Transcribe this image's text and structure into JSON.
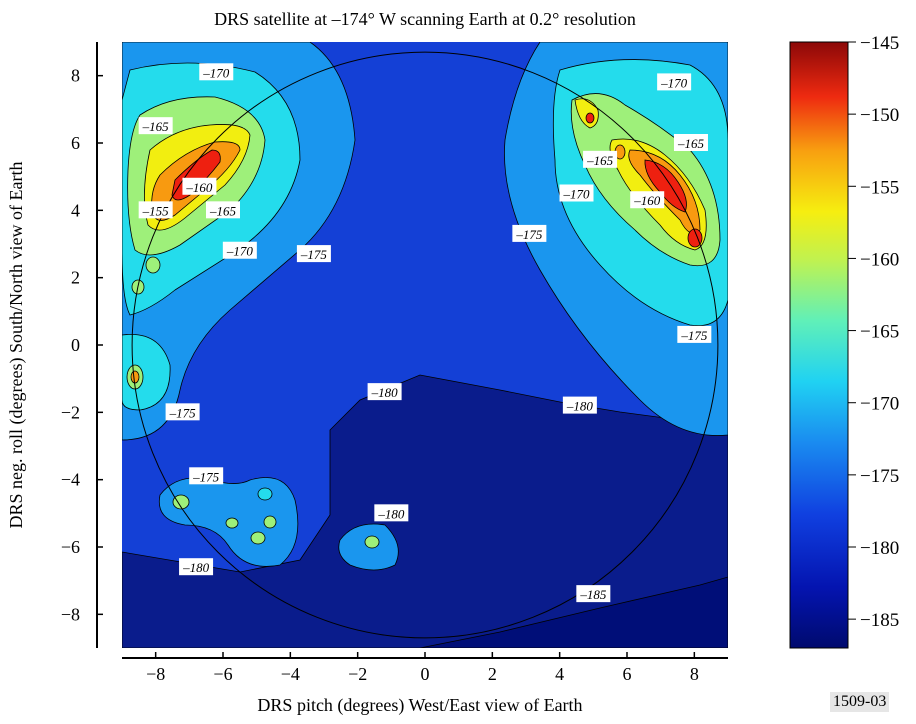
{
  "chart_data": {
    "type": "heatmap",
    "title": "DRS satellite at –174° W scanning Earth at 0.2° resolution",
    "xlabel": "DRS pitch (degrees) West/East view of Earth",
    "ylabel": "DRS neg. roll (degrees) South/North view of Earth",
    "xlim": [
      -9,
      9
    ],
    "ylim": [
      -9,
      9
    ],
    "x_ticks": [
      -8,
      -6,
      -4,
      -2,
      0,
      2,
      4,
      6,
      8
    ],
    "x_tick_labels": [
      "−8",
      "−6",
      "−4",
      "−2",
      "0",
      "2",
      "4",
      "6",
      "8"
    ],
    "y_ticks": [
      -8,
      -6,
      -4,
      -2,
      0,
      2,
      4,
      6,
      8
    ],
    "y_tick_labels": [
      "−8",
      "−6",
      "−4",
      "−2",
      "0",
      "2",
      "4",
      "6",
      "8"
    ],
    "colorbar": {
      "range": [
        -187,
        -145
      ],
      "ticks": [
        -145,
        -150,
        -155,
        -160,
        -165,
        -170,
        -175,
        -180,
        -185
      ],
      "tick_labels": [
        "−145",
        "−150",
        "−155",
        "−160",
        "−165",
        "−170",
        "−175",
        "−180",
        "−185"
      ]
    },
    "earth_disc": {
      "center": [
        0,
        0
      ],
      "radius": 8.7
    },
    "contour_levels": [
      -185,
      -180,
      -175,
      -170,
      -165,
      -160,
      -155,
      -150
    ],
    "contour_labels": [
      {
        "text": "–170",
        "x": -6.2,
        "y": 8.1
      },
      {
        "text": "–165",
        "x": -8.0,
        "y": 6.5
      },
      {
        "text": "–160",
        "x": -6.7,
        "y": 4.7
      },
      {
        "text": "–155",
        "x": -8.0,
        "y": 4.0
      },
      {
        "text": "–165",
        "x": -6.0,
        "y": 4.0
      },
      {
        "text": "–170",
        "x": -5.5,
        "y": 2.8
      },
      {
        "text": "–175",
        "x": -3.3,
        "y": 2.7
      },
      {
        "text": "–170",
        "x": 7.4,
        "y": 7.8
      },
      {
        "text": "–165",
        "x": 7.9,
        "y": 6.0
      },
      {
        "text": "–165",
        "x": 5.2,
        "y": 5.5
      },
      {
        "text": "–160",
        "x": 6.6,
        "y": 4.3
      },
      {
        "text": "–170",
        "x": 4.5,
        "y": 4.5
      },
      {
        "text": "–175",
        "x": 3.1,
        "y": 3.3
      },
      {
        "text": "–175",
        "x": 8.0,
        "y": 0.3
      },
      {
        "text": "–180",
        "x": -1.2,
        "y": -1.4
      },
      {
        "text": "–180",
        "x": 4.6,
        "y": -1.8
      },
      {
        "text": "–175",
        "x": -7.2,
        "y": -2.0
      },
      {
        "text": "–175",
        "x": -6.5,
        "y": -3.9
      },
      {
        "text": "–180",
        "x": -1.0,
        "y": -5.0
      },
      {
        "text": "–180",
        "x": -6.8,
        "y": -6.6
      },
      {
        "text": "–185",
        "x": 5.0,
        "y": -7.4
      }
    ],
    "colors": {
      "-185": "#0a1c8c",
      "-180": "#1440d6",
      "-175": "#1a96ee",
      "-170": "#24dcec",
      "-165": "#9ef07a",
      "-160": "#f2ee10",
      "-155": "#f89a10",
      "-150": "#ee2010",
      "-145": "#8c0808"
    }
  },
  "figure_id": "1509-03"
}
